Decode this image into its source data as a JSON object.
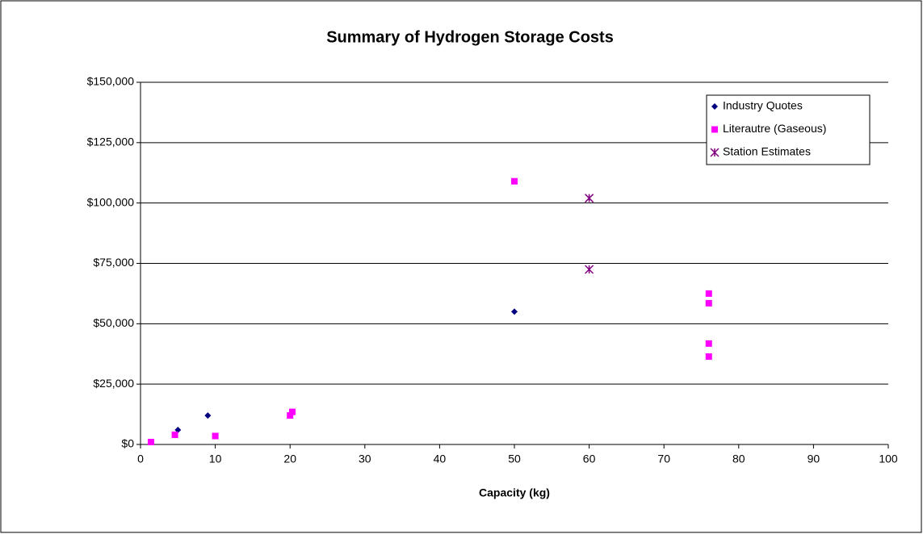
{
  "chart_data": {
    "type": "scatter",
    "title": "Summary of Hydrogen Storage Costs",
    "x_label": "Capacity (kg)",
    "xlim": [
      0,
      100
    ],
    "xticks": [
      0,
      10,
      20,
      30,
      40,
      50,
      60,
      70,
      80,
      90,
      100
    ],
    "ylim": [
      0,
      150000
    ],
    "yticks": [
      {
        "value": 0,
        "label": "$0"
      },
      {
        "value": 25000,
        "label": "$25,000"
      },
      {
        "value": 50000,
        "label": "$50,000"
      },
      {
        "value": 75000,
        "label": "$75,000"
      },
      {
        "value": 100000,
        "label": "$100,000"
      },
      {
        "value": 125000,
        "label": "$125,000"
      },
      {
        "value": 150000,
        "label": "$150,000"
      }
    ],
    "grid": true,
    "legend": "upper right",
    "series": [
      {
        "name": "Industry Quotes",
        "color": "#000080",
        "marker": "diamond",
        "x": [
          5,
          9,
          50
        ],
        "values": [
          6000,
          12000,
          55000
        ]
      },
      {
        "name": "Literautre (Gaseous)",
        "color": "#ff00ff",
        "marker": "square",
        "x": [
          1.4,
          4.6,
          10,
          20,
          20.3,
          50,
          76,
          76,
          76,
          76
        ],
        "values": [
          1000,
          4000,
          3500,
          12000,
          13500,
          109000,
          62500,
          58500,
          41800,
          36400
        ]
      },
      {
        "name": "Station Estimates",
        "color": "#800080",
        "marker": "star",
        "x": [
          60,
          60
        ],
        "values": [
          102000,
          72500
        ]
      }
    ]
  }
}
